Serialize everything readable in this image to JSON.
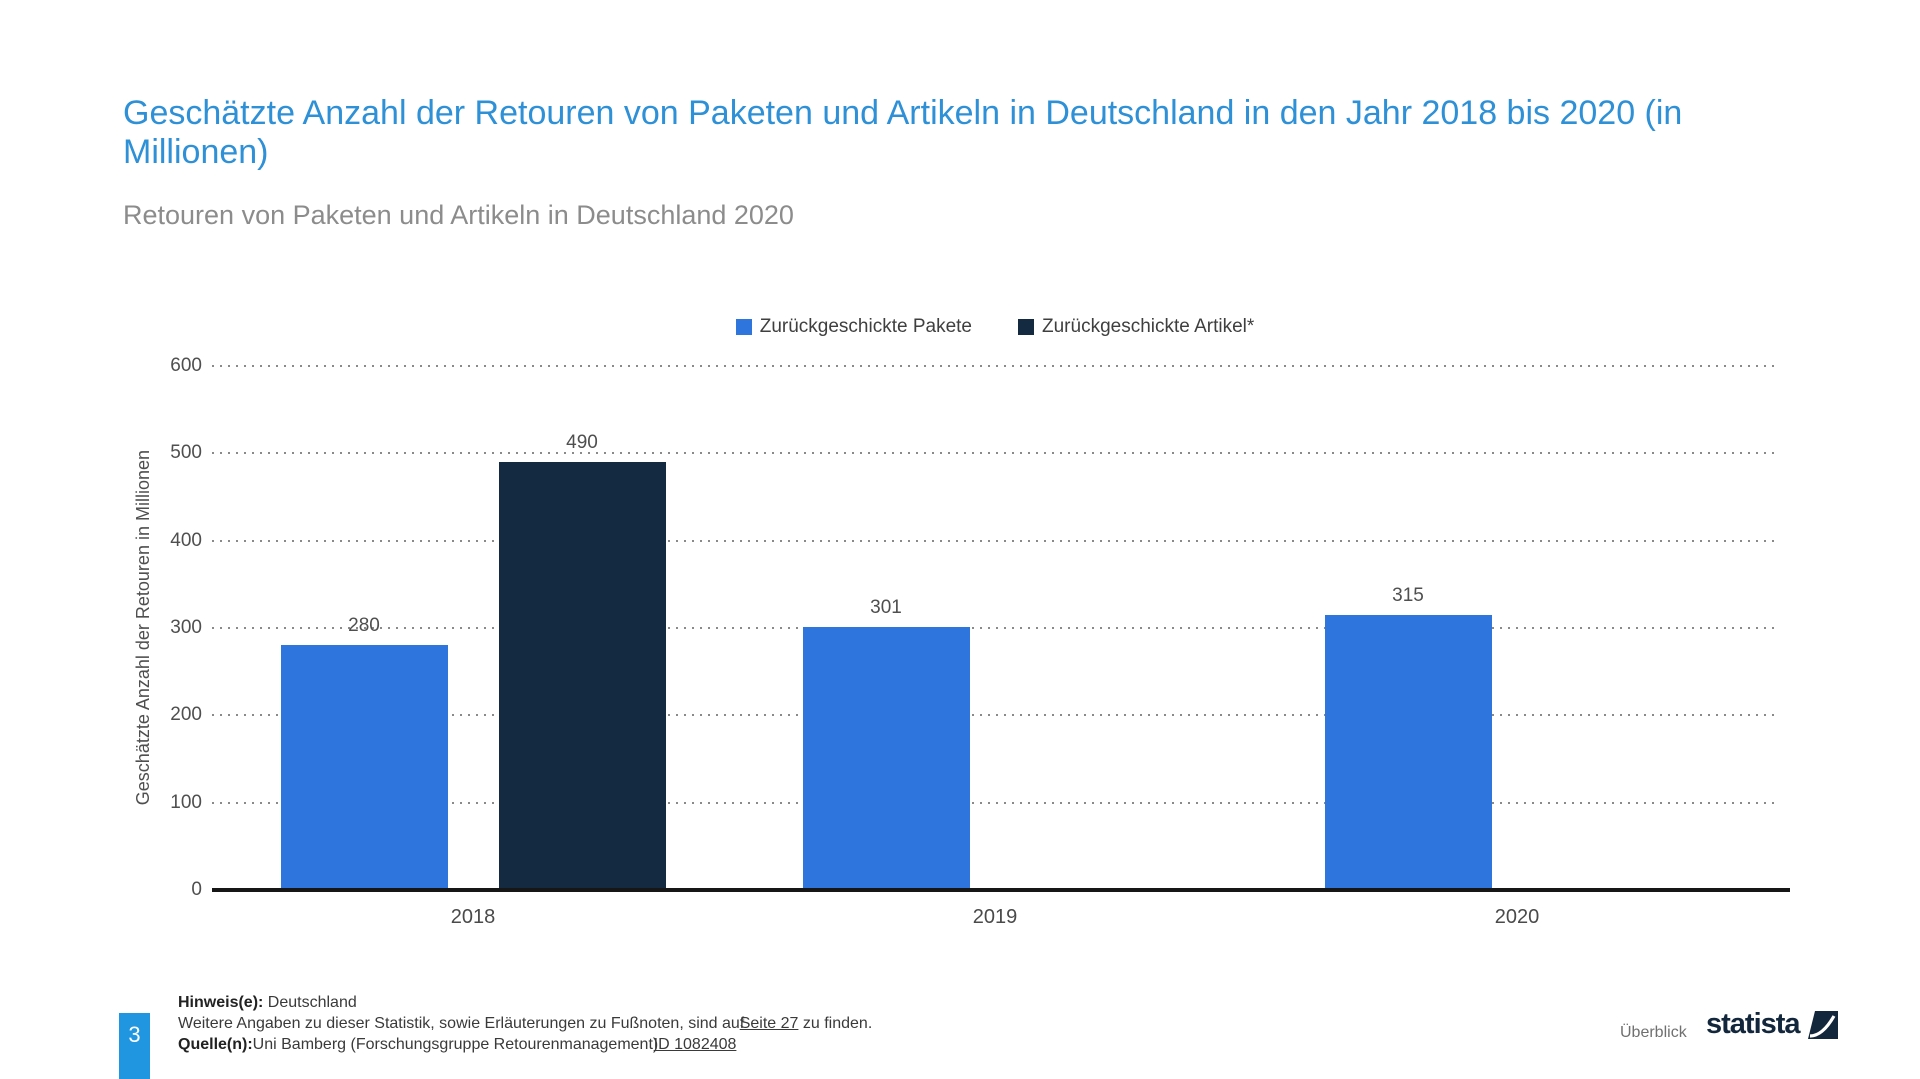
{
  "title": "Geschätzte Anzahl der Retouren von Paketen und Artikeln in Deutschland in den Jahr 2018 bis 2020 (in Millionen)",
  "subtitle": "Retouren von Paketen und Artikeln in Deutschland 2020",
  "chart_data": {
    "type": "bar",
    "categories": [
      "2018",
      "2019",
      "2020"
    ],
    "series": [
      {
        "name": "Zurückgeschickte Pakete",
        "key": "pakete",
        "color": "#2e76dd",
        "values": [
          280,
          301,
          315
        ]
      },
      {
        "name": "Zurückgeschickte Artikel*",
        "key": "artikel",
        "color": "#132a40",
        "values": [
          490,
          null,
          null
        ]
      }
    ],
    "ylabel": "Geschätzte Anzahl der Retouren in Millionen",
    "ylim": [
      0,
      600
    ],
    "yticks": [
      0,
      100,
      200,
      300,
      400,
      500,
      600
    ],
    "grid": "horizontal-dotted",
    "legend_position": "top-center",
    "value_labels": true
  },
  "footer": {
    "hinweis_label": "Hinweis(e):",
    "hinweis_text": "Deutschland",
    "info_text_before": "Weitere Angaben zu dieser Statistik, sowie Erläuterungen zu Fußnoten, sind auf",
    "info_link": "Seite 27",
    "info_text_after": "zu finden.",
    "quelle_label": "Quelle(n):",
    "quelle_text": "Uni Bamberg (Forschungsgruppe Retourenmanagement)",
    "quelle_link": "ID 1082408",
    "page_number": "3",
    "overview_label": "Überblick",
    "brand_name": "statista"
  },
  "colors": {
    "title_blue": "#2e90d6",
    "bar_blue": "#2e76dd",
    "bar_navy": "#132a40",
    "page_badge_blue": "#2196e0",
    "brand_navy": "#12263c",
    "gridline_gray": "#8a8a8a"
  }
}
